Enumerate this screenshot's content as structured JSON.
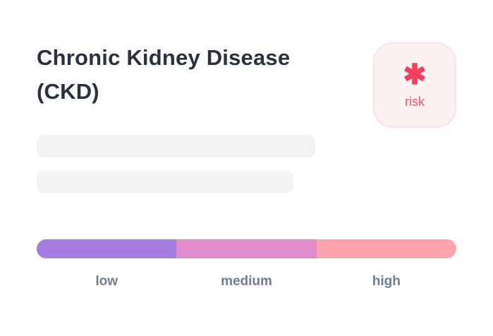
{
  "card": {
    "title": "Chronic Kidney Disease (CKD)",
    "risk_badge": {
      "icon_glyph": "✱",
      "label": "risk",
      "icon_color": "#F43F5E",
      "background": "#FEF1F2",
      "border_color": "#FBE1E5"
    },
    "risk_scale": {
      "segments": [
        {
          "label": "low",
          "color": "#A57CE0"
        },
        {
          "label": "medium",
          "color": "#E28CCE"
        },
        {
          "label": "high",
          "color": "#FDA3AE"
        }
      ]
    }
  }
}
